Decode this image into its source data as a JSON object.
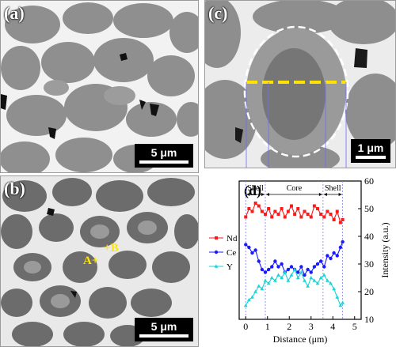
{
  "panels": {
    "a": {
      "tag": "(a)",
      "scale_label": "5 μm"
    },
    "b": {
      "tag": "(b)",
      "scale_label": "5 μm",
      "markers": {
        "a": "A",
        "b": "B"
      }
    },
    "c": {
      "tag": "(c)",
      "scale_label": "1 μm"
    },
    "d": {
      "tag": "(d)"
    }
  },
  "colors": {
    "nd": "#ff1a1a",
    "ce": "#1a1aff",
    "y": "#19d6d6",
    "linescan": "#ffe200",
    "marker": "#ffe600"
  },
  "chart_data": {
    "type": "line",
    "xlabel": "Distance (μm)",
    "ylabel": "Intensity (a.u.)",
    "xlim": [
      -0.3,
      5.3
    ],
    "ylim": [
      10,
      60
    ],
    "xticks": [
      0,
      1,
      2,
      3,
      4,
      5
    ],
    "yticks": [
      10,
      20,
      30,
      40,
      50,
      60
    ],
    "regions": [
      {
        "label": "Shell",
        "from": 0,
        "to": 0.9
      },
      {
        "label": "Core",
        "from": 0.9,
        "to": 3.55
      },
      {
        "label": "Shell",
        "from": 3.55,
        "to": 4.45
      }
    ],
    "boundaries": [
      0,
      0.9,
      3.55,
      4.45
    ],
    "legend_position": "left",
    "series": [
      {
        "name": "Nd",
        "color": "#ff1a1a",
        "marker": "square",
        "x": [
          0,
          0.15,
          0.3,
          0.45,
          0.6,
          0.75,
          0.9,
          1.05,
          1.2,
          1.35,
          1.5,
          1.65,
          1.8,
          1.95,
          2.1,
          2.25,
          2.4,
          2.55,
          2.7,
          2.85,
          3.0,
          3.15,
          3.3,
          3.45,
          3.6,
          3.75,
          3.9,
          4.05,
          4.2,
          4.35,
          4.45
        ],
        "values": [
          47,
          50,
          49,
          52,
          51,
          49,
          48,
          50,
          47,
          49,
          48,
          50,
          47,
          49,
          51,
          48,
          50,
          47,
          49,
          48,
          47,
          51,
          50,
          48,
          47,
          49,
          48,
          46,
          49,
          45,
          46
        ]
      },
      {
        "name": "Ce",
        "color": "#1a1aff",
        "marker": "circle",
        "x": [
          0,
          0.15,
          0.3,
          0.45,
          0.6,
          0.75,
          0.9,
          1.05,
          1.2,
          1.35,
          1.5,
          1.65,
          1.8,
          1.95,
          2.1,
          2.25,
          2.4,
          2.55,
          2.7,
          2.85,
          3.0,
          3.15,
          3.3,
          3.45,
          3.6,
          3.75,
          3.9,
          4.05,
          4.2,
          4.35,
          4.45
        ],
        "values": [
          37,
          36,
          34,
          35,
          31,
          28,
          27,
          28,
          29,
          31,
          29,
          30,
          27,
          28,
          29,
          28,
          27,
          29,
          26,
          28,
          27,
          29,
          30,
          31,
          29,
          33,
          32,
          34,
          33,
          36,
          38
        ]
      },
      {
        "name": "Y",
        "color": "#19d6d6",
        "marker": "triangle",
        "x": [
          0,
          0.15,
          0.3,
          0.45,
          0.6,
          0.75,
          0.9,
          1.05,
          1.2,
          1.35,
          1.5,
          1.65,
          1.8,
          1.95,
          2.1,
          2.25,
          2.4,
          2.55,
          2.7,
          2.85,
          3.0,
          3.15,
          3.3,
          3.45,
          3.6,
          3.75,
          3.9,
          4.05,
          4.2,
          4.35,
          4.45
        ],
        "values": [
          15,
          17,
          18,
          20,
          22,
          21,
          24,
          23,
          25,
          24,
          26,
          25,
          27,
          24,
          26,
          28,
          25,
          27,
          24,
          22,
          25,
          24,
          23,
          25,
          26,
          24,
          23,
          21,
          18,
          15,
          16
        ]
      }
    ]
  }
}
